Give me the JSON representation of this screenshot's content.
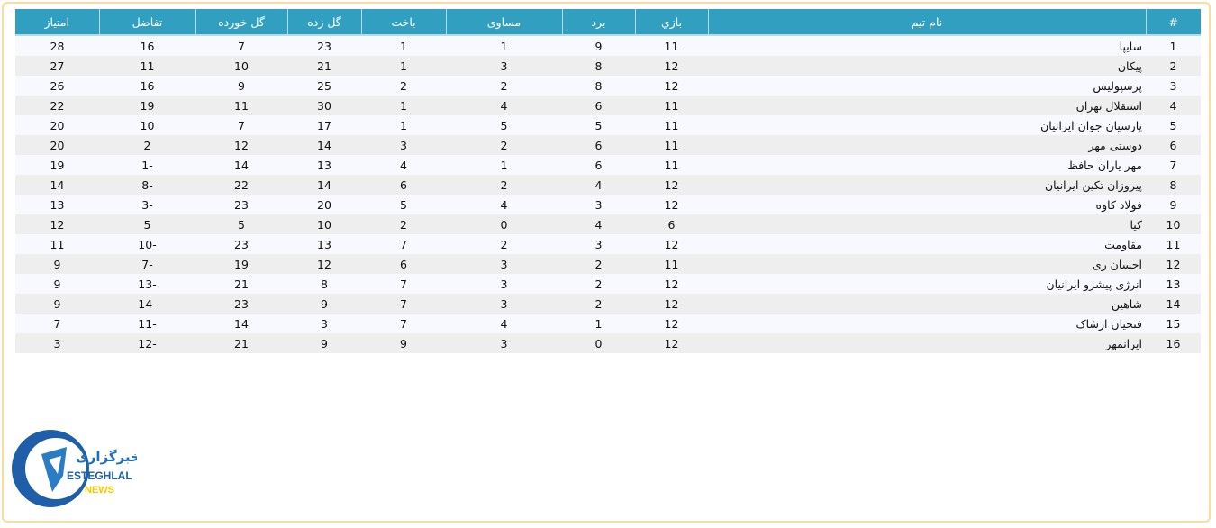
{
  "columns": [
    "#",
    "نام تیم",
    "بازي",
    "برد",
    "مساوی",
    "باخت",
    "گل زده",
    "گل خورده",
    "تفاضل",
    "امتیاز"
  ],
  "rows": [
    [
      "1",
      "سایپا",
      "11",
      "9",
      "1",
      "1",
      "23",
      "7",
      "16",
      "28"
    ],
    [
      "2",
      "پیکان",
      "12",
      "8",
      "3",
      "1",
      "21",
      "10",
      "11",
      "27"
    ],
    [
      "3",
      "پرسپولیس",
      "12",
      "8",
      "2",
      "2",
      "25",
      "9",
      "16",
      "26"
    ],
    [
      "4",
      "استقلال تهران",
      "11",
      "6",
      "4",
      "1",
      "30",
      "11",
      "19",
      "22"
    ],
    [
      "5",
      "پارسیان جوان ایرانیان",
      "11",
      "5",
      "5",
      "1",
      "17",
      "7",
      "10",
      "20"
    ],
    [
      "6",
      "دوستی مهر",
      "11",
      "6",
      "2",
      "3",
      "14",
      "12",
      "2",
      "20"
    ],
    [
      "7",
      "مهر یاران حافظ",
      "11",
      "6",
      "1",
      "4",
      "13",
      "14",
      "-1",
      "19"
    ],
    [
      "8",
      "پیروزان تکین ایرانیان",
      "12",
      "4",
      "2",
      "6",
      "14",
      "22",
      "-8",
      "14"
    ],
    [
      "9",
      "فولاد کاوه",
      "12",
      "3",
      "4",
      "5",
      "20",
      "23",
      "-3",
      "13"
    ],
    [
      "10",
      "کیا",
      "6",
      "4",
      "0",
      "2",
      "10",
      "5",
      "5",
      "12"
    ],
    [
      "11",
      "مقاومت",
      "12",
      "3",
      "2",
      "7",
      "13",
      "23",
      "-10",
      "11"
    ],
    [
      "12",
      "احسان ری",
      "11",
      "2",
      "3",
      "6",
      "12",
      "19",
      "-7",
      "9"
    ],
    [
      "13",
      "انرژی پیشرو ایرانیان",
      "12",
      "2",
      "3",
      "7",
      "8",
      "21",
      "-13",
      "9"
    ],
    [
      "14",
      "شاهین",
      "12",
      "2",
      "3",
      "7",
      "9",
      "23",
      "-14",
      "9"
    ],
    [
      "15",
      "فتحیان ارشاک",
      "12",
      "1",
      "4",
      "7",
      "3",
      "14",
      "-11",
      "7"
    ],
    [
      "16",
      "ایرانمهر",
      "12",
      "0",
      "3",
      "9",
      "9",
      "21",
      "-12",
      "3"
    ]
  ],
  "logo": {
    "text_fa": "خبرگزاری",
    "text_en1": "ESTEGHLAL",
    "text_en2": "NEWS"
  },
  "colors": {
    "header": "#31a0c0",
    "logo_blue": "#1e5fa8",
    "logo_yellow": "#f5c800"
  }
}
